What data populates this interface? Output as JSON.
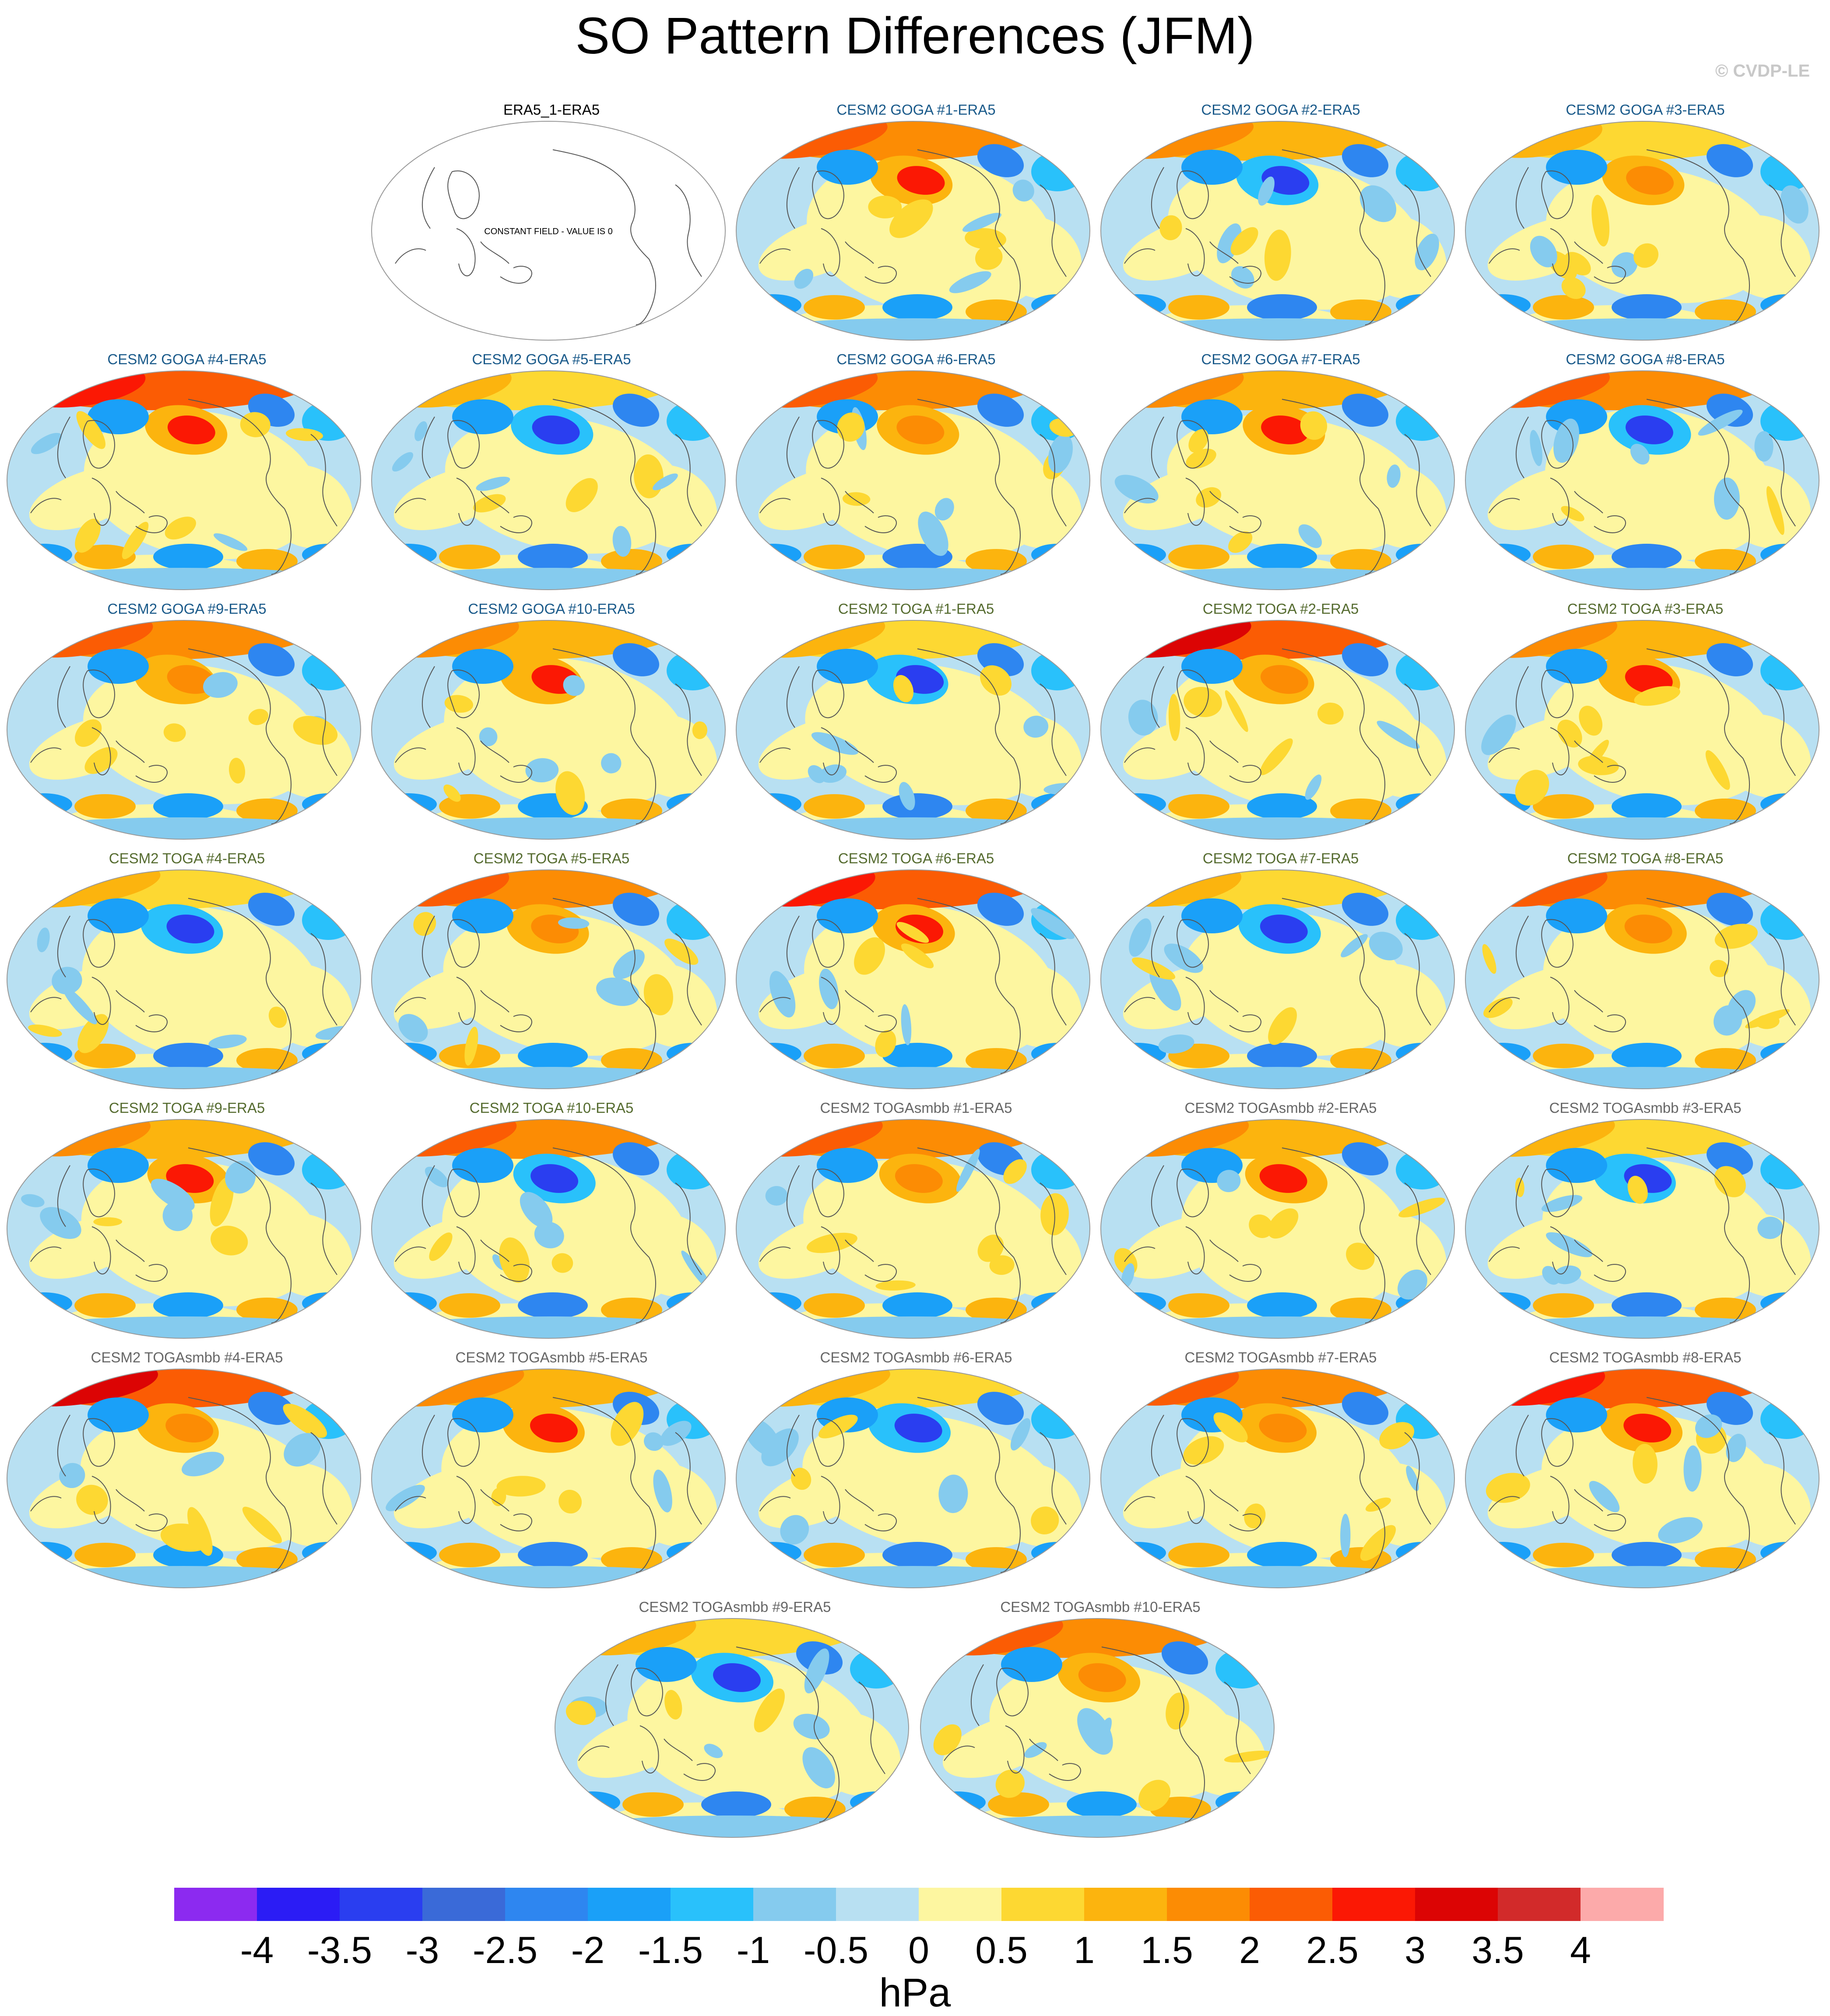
{
  "title": "SO Pattern Differences (JFM)",
  "copyright": "© CVDP-LE",
  "colors": {
    "goga_title": "#1a5a8a",
    "toga_title": "#556b2f",
    "togasmbb_title": "#666666",
    "obs_title": "#000000"
  },
  "panels": [
    {
      "title": "ERA5_1-ERA5",
      "group": "obs",
      "pattern": 0,
      "note": "CONSTANT FIELD - VALUE IS 0"
    },
    {
      "title": "CESM2 GOGA #1-ERA5",
      "group": "goga",
      "pattern": 1
    },
    {
      "title": "CESM2 GOGA #2-ERA5",
      "group": "goga",
      "pattern": 2
    },
    {
      "title": "CESM2 GOGA #3-ERA5",
      "group": "goga",
      "pattern": 3
    },
    {
      "title": "CESM2 GOGA #4-ERA5",
      "group": "goga",
      "pattern": 4
    },
    {
      "title": "CESM2 GOGA #5-ERA5",
      "group": "goga",
      "pattern": 5
    },
    {
      "title": "CESM2 GOGA #6-ERA5",
      "group": "goga",
      "pattern": 6
    },
    {
      "title": "CESM2 GOGA #7-ERA5",
      "group": "goga",
      "pattern": 7
    },
    {
      "title": "CESM2 GOGA #8-ERA5",
      "group": "goga",
      "pattern": 8
    },
    {
      "title": "CESM2 GOGA #9-ERA5",
      "group": "goga",
      "pattern": 9
    },
    {
      "title": "CESM2 GOGA #10-ERA5",
      "group": "goga",
      "pattern": 10
    },
    {
      "title": "CESM2 TOGA #1-ERA5",
      "group": "toga",
      "pattern": 11
    },
    {
      "title": "CESM2 TOGA #2-ERA5",
      "group": "toga",
      "pattern": 12
    },
    {
      "title": "CESM2 TOGA #3-ERA5",
      "group": "toga",
      "pattern": 13
    },
    {
      "title": "CESM2 TOGA #4-ERA5",
      "group": "toga",
      "pattern": 14
    },
    {
      "title": "CESM2 TOGA #5-ERA5",
      "group": "toga",
      "pattern": 15
    },
    {
      "title": "CESM2 TOGA #6-ERA5",
      "group": "toga",
      "pattern": 16
    },
    {
      "title": "CESM2 TOGA #7-ERA5",
      "group": "toga",
      "pattern": 17
    },
    {
      "title": "CESM2 TOGA #8-ERA5",
      "group": "toga",
      "pattern": 18
    },
    {
      "title": "CESM2 TOGA #9-ERA5",
      "group": "toga",
      "pattern": 19
    },
    {
      "title": "CESM2 TOGA #10-ERA5",
      "group": "toga",
      "pattern": 20
    },
    {
      "title": "CESM2 TOGAsmbb #1-ERA5",
      "group": "togasmbb",
      "pattern": 21
    },
    {
      "title": "CESM2 TOGAsmbb #2-ERA5",
      "group": "togasmbb",
      "pattern": 22
    },
    {
      "title": "CESM2 TOGAsmbb #3-ERA5",
      "group": "togasmbb",
      "pattern": 23
    },
    {
      "title": "CESM2 TOGAsmbb #4-ERA5",
      "group": "togasmbb",
      "pattern": 24
    },
    {
      "title": "CESM2 TOGAsmbb #5-ERA5",
      "group": "togasmbb",
      "pattern": 25
    },
    {
      "title": "CESM2 TOGAsmbb #6-ERA5",
      "group": "togasmbb",
      "pattern": 26
    },
    {
      "title": "CESM2 TOGAsmbb #7-ERA5",
      "group": "togasmbb",
      "pattern": 27
    },
    {
      "title": "CESM2 TOGAsmbb #8-ERA5",
      "group": "togasmbb",
      "pattern": 28
    },
    {
      "title": "CESM2 TOGAsmbb #9-ERA5",
      "group": "togasmbb",
      "pattern": 29
    },
    {
      "title": "CESM2 TOGAsmbb #10-ERA5",
      "group": "togasmbb",
      "pattern": 30
    }
  ],
  "chart_data": {
    "type": "heatmap",
    "title": "SO Pattern Differences (JFM)",
    "projection": "Robinson (global, Pacific-centered)",
    "field": "sea level pressure difference",
    "units": "hPa",
    "colorbar": {
      "label": "hPa",
      "levels": [
        "-4",
        "-3.5",
        "-3",
        "-2.5",
        "-2",
        "-1.5",
        "-1",
        "-0.5",
        "0",
        "0.5",
        "1",
        "1.5",
        "2",
        "2.5",
        "3",
        "3.5",
        "4"
      ],
      "colors": [
        "#8c2af0",
        "#2b1cf5",
        "#2a3ef0",
        "#3a6ad8",
        "#2e86f0",
        "#1aa0f8",
        "#29c1fb",
        "#85cbee",
        "#b8e0f2",
        "#fdf6a0",
        "#fdd832",
        "#fcb40e",
        "#fc8c04",
        "#fb5c04",
        "#fb1804",
        "#dc0404",
        "#d22a2a",
        "#fcaaaa"
      ]
    }
  }
}
